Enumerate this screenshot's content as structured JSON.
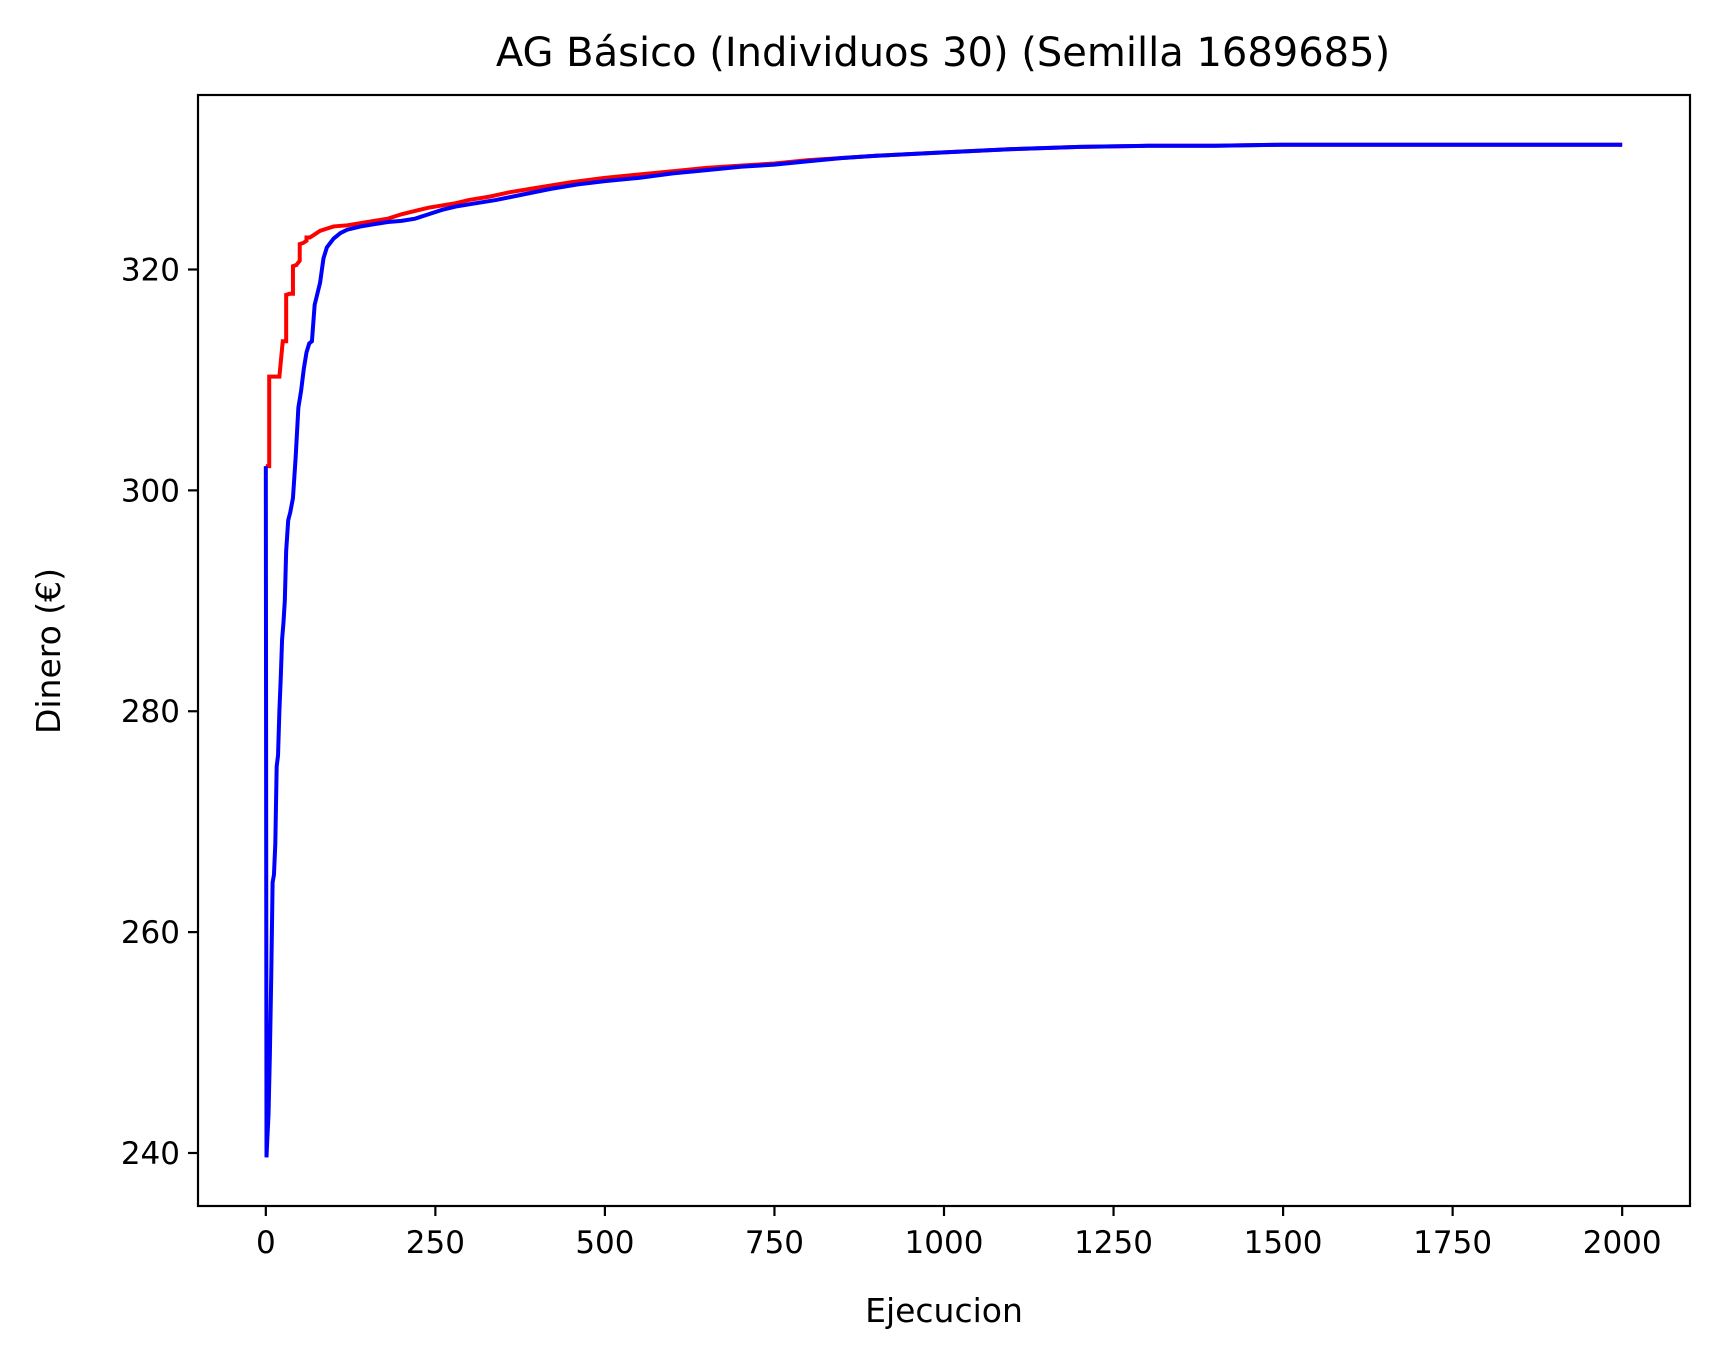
{
  "chart_data": {
    "type": "line",
    "title": "AG Básico (Individuos 30) (Semilla 1689685)",
    "xlabel": "Ejecucion",
    "ylabel": "Dinero (€)",
    "xlim": [
      -100,
      2100
    ],
    "ylim": [
      235.2,
      335.8
    ],
    "xticks": [
      0,
      250,
      500,
      750,
      1000,
      1250,
      1500,
      1750,
      2000
    ],
    "yticks": [
      240,
      260,
      280,
      300,
      320
    ],
    "grid": false,
    "legend": null,
    "series": [
      {
        "color": "#ff0000",
        "x": [
          0,
          5,
          5,
          10,
          10,
          15,
          20,
          25,
          30,
          30,
          35,
          40,
          40,
          45,
          50,
          50,
          55,
          60,
          60,
          65,
          70,
          80,
          90,
          100,
          120,
          140,
          160,
          180,
          200,
          220,
          240,
          260,
          280,
          300,
          330,
          360,
          400,
          450,
          500,
          550,
          600,
          650,
          700,
          750,
          800,
          850,
          900,
          1000,
          1100,
          1200,
          1300,
          1400,
          1500,
          1600,
          1700,
          1800,
          1900,
          2000
        ],
        "y": [
          302.2,
          302.2,
          310.3,
          310.3,
          310.3,
          310.3,
          310.3,
          313.5,
          313.5,
          317.7,
          317.8,
          317.8,
          320.3,
          320.4,
          320.8,
          322.3,
          322.4,
          322.6,
          322.9,
          322.9,
          323.1,
          323.5,
          323.7,
          323.9,
          324.0,
          324.2,
          324.4,
          324.6,
          325.0,
          325.3,
          325.6,
          325.8,
          326.0,
          326.3,
          326.6,
          327.0,
          327.4,
          327.9,
          328.3,
          328.6,
          328.9,
          329.2,
          329.4,
          329.6,
          329.9,
          330.1,
          330.3,
          330.6,
          330.9,
          331.1,
          331.2,
          331.2,
          331.3,
          331.3,
          331.3,
          331.3,
          331.3,
          331.3
        ]
      },
      {
        "color": "#0000ff",
        "x": [
          0,
          1,
          2,
          4,
          6,
          8,
          10,
          12,
          14,
          16,
          18,
          20,
          22,
          24,
          26,
          28,
          30,
          33,
          36,
          40,
          44,
          48,
          52,
          56,
          60,
          64,
          68,
          72,
          76,
          80,
          85,
          90,
          100,
          110,
          120,
          140,
          160,
          180,
          200,
          220,
          240,
          260,
          280,
          300,
          340,
          380,
          420,
          460,
          500,
          550,
          600,
          650,
          700,
          750,
          800,
          850,
          900,
          1000,
          1100,
          1200,
          1300,
          1400,
          1500,
          1600,
          1700,
          1800,
          1900,
          2000
        ],
        "y": [
          302.2,
          239.6,
          241.0,
          243.5,
          249.0,
          256.0,
          264.5,
          265.2,
          268.0,
          275.0,
          276.0,
          280.0,
          283.0,
          286.5,
          288.0,
          290.0,
          294.5,
          297.3,
          298.0,
          299.3,
          303.0,
          307.5,
          309.0,
          311.0,
          312.5,
          313.3,
          313.5,
          316.8,
          317.8,
          318.8,
          321.0,
          322.0,
          322.8,
          323.3,
          323.6,
          323.9,
          324.1,
          324.3,
          324.4,
          324.6,
          325.0,
          325.4,
          325.7,
          325.9,
          326.3,
          326.8,
          327.3,
          327.7,
          328.0,
          328.3,
          328.7,
          329.0,
          329.3,
          329.5,
          329.8,
          330.1,
          330.3,
          330.6,
          330.9,
          331.1,
          331.2,
          331.2,
          331.3,
          331.3,
          331.3,
          331.3,
          331.3,
          331.3
        ]
      }
    ]
  }
}
